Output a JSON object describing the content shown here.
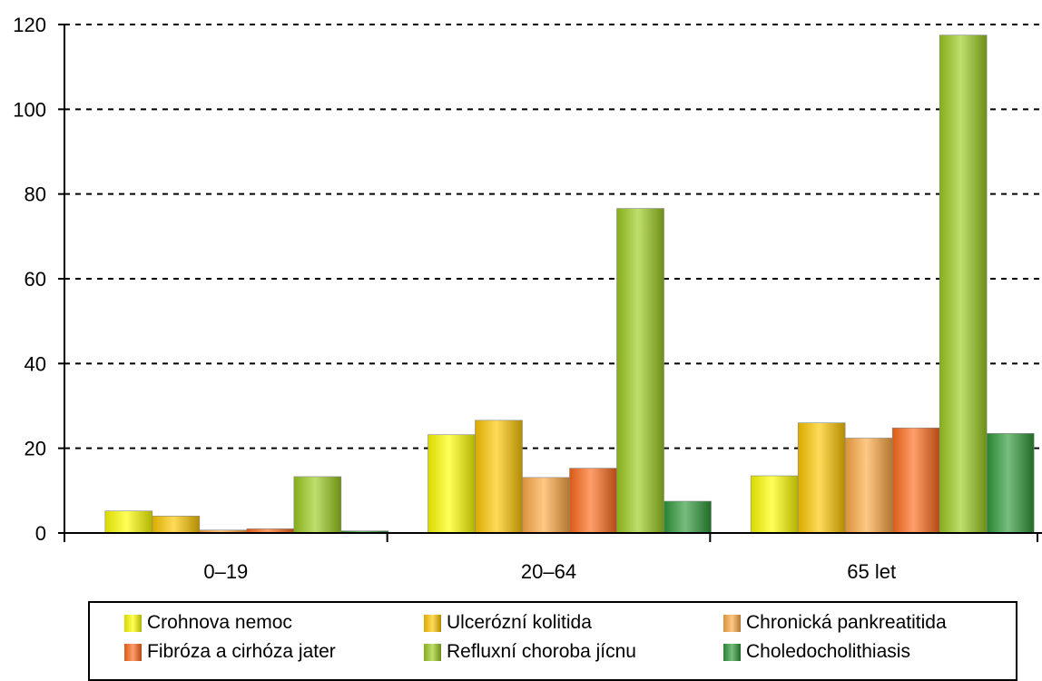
{
  "chart_data": {
    "type": "bar",
    "title": "",
    "xlabel": "",
    "ylabel": "",
    "ylim": [
      0,
      120
    ],
    "yticks": [
      0,
      20,
      40,
      60,
      80,
      100,
      120
    ],
    "grid": true,
    "legend_position": "bottom",
    "categories": [
      "0–19",
      "20–64",
      "65 let"
    ],
    "series": [
      {
        "name": "Crohnova nemoc",
        "color": "#ffff00",
        "values": [
          5.2,
          23.2,
          13.5
        ]
      },
      {
        "name": "Ulcerózní kolitida",
        "color": "#ffc800",
        "values": [
          4.0,
          26.6,
          26.0
        ]
      },
      {
        "name": "Chronická pankreatitida",
        "color": "#ffaa44",
        "values": [
          0.7,
          13.1,
          22.4
        ]
      },
      {
        "name": "Fibróza a cirhóza jater",
        "color": "#ff6a1a",
        "values": [
          1.0,
          15.3,
          24.8
        ]
      },
      {
        "name": "Refluxní choroba jícnu",
        "color": "#9ccc1e",
        "values": [
          13.3,
          76.6,
          117.5
        ]
      },
      {
        "name": "Choledocholithiasis",
        "color": "#2e9a38",
        "values": [
          0.5,
          7.5,
          23.5
        ]
      }
    ]
  }
}
